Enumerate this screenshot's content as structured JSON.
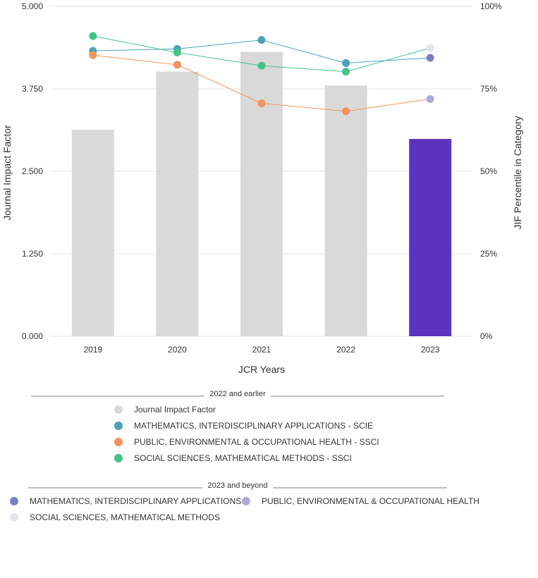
{
  "chart_data": {
    "type": "bar",
    "xlabel": "JCR Years",
    "ylabel": "Journal Impact Factor",
    "y2label": "JIF Percentile in Category",
    "categories": [
      "2019",
      "2020",
      "2021",
      "2022",
      "2023"
    ],
    "ylim": [
      0,
      5
    ],
    "y_ticks": [
      "0.000",
      "1.250",
      "2.500",
      "3.750",
      "5.000"
    ],
    "y2lim": [
      0,
      100
    ],
    "y2_ticks": [
      "0%",
      "25%",
      "50%",
      "75%",
      "100%"
    ],
    "grid": true,
    "bars": {
      "name": "Journal Impact Factor",
      "values": [
        3.13,
        4.01,
        4.31,
        3.8,
        2.99
      ],
      "colors": [
        "#d9d9d9",
        "#d9d9d9",
        "#d9d9d9",
        "#d9d9d9",
        "#5c33be"
      ]
    },
    "series": [
      {
        "name": "MATHEMATICS, INTERDISCIPLINARY APPLICATIONS - SCIE",
        "color": "#4aa3b8",
        "axis": "right",
        "values": [
          86.5,
          87.1,
          89.8,
          82.8,
          null
        ]
      },
      {
        "name": "PUBLIC, ENVIRONMENTAL & OCCUPATIONAL HEALTH - SSCI",
        "color": "#f4925d",
        "axis": "right",
        "values": [
          85.2,
          82.3,
          70.6,
          68.2,
          null
        ]
      },
      {
        "name": "SOCIAL SCIENCES, MATHEMATICAL METHODS - SSCI",
        "color": "#43c487",
        "axis": "right",
        "values": [
          91.0,
          86.0,
          82.0,
          80.2,
          null
        ]
      }
    ],
    "connectors": [
      {
        "from_series": 0,
        "to_point": 1,
        "color": "#4aa3b8"
      },
      {
        "from_series": 1,
        "to_point": 2,
        "color": "#f4925d"
      },
      {
        "from_series": 2,
        "to_point": 0,
        "color": "#43c487"
      }
    ],
    "points_2023": [
      {
        "name": "SOCIAL SCIENCES, MATHEMATICAL METHODS",
        "color": "#e3e4ee",
        "value": 87.4
      },
      {
        "name": "MATHEMATICS, INTERDISCIPLINARY APPLICATIONS",
        "color": "#7a80c0",
        "value": 84.4
      },
      {
        "name": "PUBLIC, ENVIRONMENTAL & OCCUPATIONAL HEALTH",
        "color": "#a8abd6",
        "value": 71.9
      }
    ]
  },
  "legend": {
    "group1_heading": "2022 and earlier",
    "group1_items": [
      {
        "label": "Journal Impact Factor",
        "color": "#d9d9d9"
      },
      {
        "label": "MATHEMATICS, INTERDISCIPLINARY APPLICATIONS - SCIE",
        "color": "#4aa3b8"
      },
      {
        "label": "PUBLIC, ENVIRONMENTAL & OCCUPATIONAL HEALTH - SSCI",
        "color": "#f4925d"
      },
      {
        "label": "SOCIAL SCIENCES, MATHEMATICAL METHODS - SSCI",
        "color": "#43c487"
      }
    ],
    "group2_heading": "2023 and beyond",
    "group2_items": [
      {
        "label": "MATHEMATICS, INTERDISCIPLINARY APPLICATIONS",
        "color": "#7a80c0"
      },
      {
        "label": "PUBLIC, ENVIRONMENTAL & OCCUPATIONAL HEALTH",
        "color": "#a8abd6"
      },
      {
        "label": "SOCIAL SCIENCES, MATHEMATICAL METHODS",
        "color": "#e3e4ee"
      }
    ]
  }
}
